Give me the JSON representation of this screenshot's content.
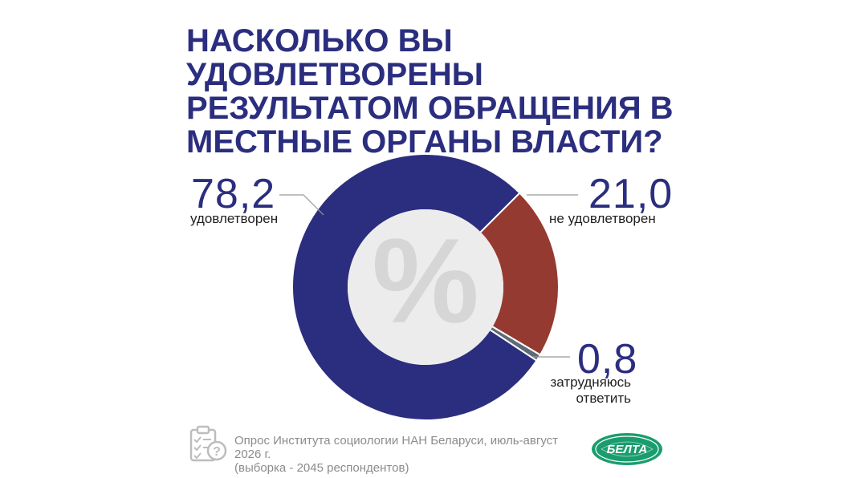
{
  "title_lines": [
    "НАСКОЛЬКО ВЫ УДОВЛЕТВОРЕНЫ",
    "РЕЗУЛЬТАТОМ ОБРАЩЕНИЯ В",
    "МЕСТНЫЕ ОРГАНЫ ВЛАСТИ?"
  ],
  "center_symbol": "%",
  "chart_data": {
    "type": "pie",
    "unit": "%",
    "title": "НАСКОЛЬКО ВЫ УДОВЛЕТВОРЕНЫ РЕЗУЛЬТАТОМ ОБРАЩЕНИЯ В МЕСТНЫЕ ОРГАНЫ ВЛАСТИ?",
    "slices": [
      {
        "label": "удовлетворен",
        "value": 78.2,
        "display": "78,2",
        "color": "#2b2e7e"
      },
      {
        "label": "не удовлетворен",
        "value": 21.0,
        "display": "21,0",
        "color": "#953a30"
      },
      {
        "label": "затрудняюсь ответить",
        "display_lines": [
          "затрудняюсь",
          "ответить"
        ],
        "value": 0.8,
        "display": "0,8",
        "color": "#5e6b76"
      }
    ]
  },
  "footer": {
    "source_line1": "Опрос Института социологии НАН Беларуси, июль-август 2026 г.",
    "source_line2": "(выборка - 2045 респондентов)",
    "icon": "survey-checklist-icon"
  },
  "logo": {
    "text": "БЕЛТА",
    "color": "#1a9d6e"
  }
}
